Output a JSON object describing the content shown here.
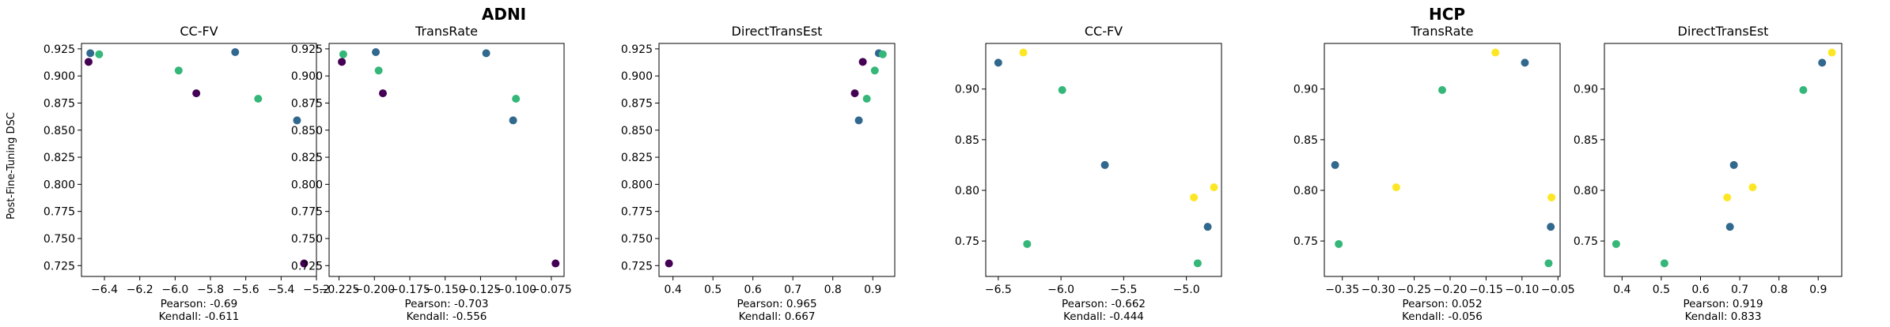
{
  "figure": {
    "groups": [
      {
        "title": "ADNI",
        "panels": [
          0,
          1,
          2
        ]
      },
      {
        "title": "HCP",
        "panels": [
          3,
          4,
          5
        ]
      }
    ],
    "ylabel": "Post-Fine-Tuning DSC"
  },
  "chart_data": [
    {
      "type": "scatter",
      "group": "ADNI",
      "title": "CC-FV",
      "xlim": [
        -6.53,
        -5.2
      ],
      "ylim": [
        0.715,
        0.93
      ],
      "xticks": [
        -6.4,
        -6.2,
        -6.0,
        -5.8,
        -5.6,
        -5.4,
        -5.2
      ],
      "xtick_labels": [
        "−6.4",
        "−6.2",
        "−6.0",
        "−5.8",
        "−5.6",
        "−5.4",
        "−5.2"
      ],
      "yticks": [
        0.725,
        0.75,
        0.775,
        0.8,
        0.825,
        0.85,
        0.875,
        0.9,
        0.925
      ],
      "ytick_labels": [
        "0.725",
        "0.750",
        "0.775",
        "0.800",
        "0.825",
        "0.850",
        "0.875",
        "0.900",
        "0.925"
      ],
      "points": [
        {
          "x": -6.48,
          "y": 0.921,
          "color": "#31688e"
        },
        {
          "x": -6.49,
          "y": 0.913,
          "color": "#440154"
        },
        {
          "x": -6.43,
          "y": 0.92,
          "color": "#35b779"
        },
        {
          "x": -5.98,
          "y": 0.905,
          "color": "#35b779"
        },
        {
          "x": -5.88,
          "y": 0.884,
          "color": "#440154"
        },
        {
          "x": -5.66,
          "y": 0.922,
          "color": "#31688e"
        },
        {
          "x": -5.53,
          "y": 0.879,
          "color": "#35b779"
        },
        {
          "x": -5.31,
          "y": 0.859,
          "color": "#31688e"
        },
        {
          "x": -5.27,
          "y": 0.727,
          "color": "#440154"
        }
      ],
      "stats": {
        "pearson": "Pearson: -0.69",
        "kendall": "Kendall: -0.611"
      }
    },
    {
      "type": "scatter",
      "group": "ADNI",
      "title": "TransRate",
      "xlim": [
        -0.232,
        -0.066
      ],
      "ylim": [
        0.715,
        0.93
      ],
      "xticks": [
        -0.225,
        -0.2,
        -0.175,
        -0.15,
        -0.125,
        -0.1,
        -0.075
      ],
      "xtick_labels": [
        "−0.225",
        "−0.200",
        "−0.175",
        "−0.150",
        "−0.125",
        "−0.100",
        "−0.075"
      ],
      "yticks": [
        0.725,
        0.75,
        0.775,
        0.8,
        0.825,
        0.85,
        0.875,
        0.9,
        0.925
      ],
      "ytick_labels": [
        "0.725",
        "0.750",
        "0.775",
        "0.800",
        "0.825",
        "0.850",
        "0.875",
        "0.900",
        "0.925"
      ],
      "points": [
        {
          "x": -0.222,
          "y": 0.92,
          "color": "#35b779"
        },
        {
          "x": -0.223,
          "y": 0.913,
          "color": "#440154"
        },
        {
          "x": -0.199,
          "y": 0.922,
          "color": "#31688e"
        },
        {
          "x": -0.197,
          "y": 0.905,
          "color": "#35b779"
        },
        {
          "x": -0.194,
          "y": 0.884,
          "color": "#440154"
        },
        {
          "x": -0.121,
          "y": 0.921,
          "color": "#31688e"
        },
        {
          "x": -0.1,
          "y": 0.879,
          "color": "#35b779"
        },
        {
          "x": -0.102,
          "y": 0.859,
          "color": "#31688e"
        },
        {
          "x": -0.072,
          "y": 0.727,
          "color": "#440154"
        }
      ],
      "stats": {
        "pearson": "Pearson: -0.703",
        "kendall": "Kendall: -0.556"
      }
    },
    {
      "type": "scatter",
      "group": "ADNI",
      "title": "DirectTransEst",
      "xlim": [
        0.365,
        0.955
      ],
      "ylim": [
        0.715,
        0.93
      ],
      "xticks": [
        0.4,
        0.5,
        0.6,
        0.7,
        0.8,
        0.9
      ],
      "xtick_labels": [
        "0.4",
        "0.5",
        "0.6",
        "0.7",
        "0.8",
        "0.9"
      ],
      "yticks": [
        0.725,
        0.75,
        0.775,
        0.8,
        0.825,
        0.85,
        0.875,
        0.9,
        0.925
      ],
      "ytick_labels": [
        "0.725",
        "0.750",
        "0.775",
        "0.800",
        "0.825",
        "0.850",
        "0.875",
        "0.900",
        "0.925"
      ],
      "points": [
        {
          "x": 0.39,
          "y": 0.727,
          "color": "#440154"
        },
        {
          "x": 0.855,
          "y": 0.884,
          "color": "#440154"
        },
        {
          "x": 0.865,
          "y": 0.859,
          "color": "#31688e"
        },
        {
          "x": 0.875,
          "y": 0.913,
          "color": "#440154"
        },
        {
          "x": 0.885,
          "y": 0.879,
          "color": "#35b779"
        },
        {
          "x": 0.905,
          "y": 0.905,
          "color": "#35b779"
        },
        {
          "x": 0.915,
          "y": 0.921,
          "color": "#31688e"
        },
        {
          "x": 0.925,
          "y": 0.92,
          "color": "#35b779"
        }
      ],
      "stats": {
        "pearson": "Pearson: 0.965",
        "kendall": "Kendall: 0.667"
      }
    },
    {
      "type": "scatter",
      "group": "HCP",
      "title": "CC-FV",
      "xlim": [
        -6.6,
        -4.72
      ],
      "ylim": [
        0.715,
        0.945
      ],
      "xticks": [
        -6.5,
        -6.0,
        -5.5,
        -5.0
      ],
      "xtick_labels": [
        "−6.5",
        "−6.0",
        "−5.5",
        "−5.0"
      ],
      "yticks": [
        0.75,
        0.8,
        0.85,
        0.9
      ],
      "ytick_labels": [
        "0.75",
        "0.80",
        "0.85",
        "0.90"
      ],
      "points": [
        {
          "x": -6.5,
          "y": 0.926,
          "color": "#31688e"
        },
        {
          "x": -6.3,
          "y": 0.936,
          "color": "#fde725"
        },
        {
          "x": -6.27,
          "y": 0.747,
          "color": "#35b779"
        },
        {
          "x": -5.99,
          "y": 0.899,
          "color": "#35b779"
        },
        {
          "x": -5.65,
          "y": 0.825,
          "color": "#31688e"
        },
        {
          "x": -4.94,
          "y": 0.793,
          "color": "#fde725"
        },
        {
          "x": -4.91,
          "y": 0.728,
          "color": "#35b779"
        },
        {
          "x": -4.83,
          "y": 0.764,
          "color": "#31688e"
        },
        {
          "x": -4.78,
          "y": 0.803,
          "color": "#fde725"
        }
      ],
      "stats": {
        "pearson": "Pearson: -0.662",
        "kendall": "Kendall: -0.444"
      }
    },
    {
      "type": "scatter",
      "group": "HCP",
      "title": "TransRate",
      "xlim": [
        -0.375,
        -0.047
      ],
      "ylim": [
        0.715,
        0.945
      ],
      "xticks": [
        -0.35,
        -0.3,
        -0.25,
        -0.2,
        -0.15,
        -0.1,
        -0.05
      ],
      "xtick_labels": [
        "−0.35",
        "−0.30",
        "−0.25",
        "−0.20",
        "−0.15",
        "−0.10",
        "−0.05"
      ],
      "yticks": [
        0.75,
        0.8,
        0.85,
        0.9
      ],
      "ytick_labels": [
        "0.75",
        "0.80",
        "0.85",
        "0.90"
      ],
      "points": [
        {
          "x": -0.36,
          "y": 0.825,
          "color": "#31688e"
        },
        {
          "x": -0.355,
          "y": 0.747,
          "color": "#35b779"
        },
        {
          "x": -0.275,
          "y": 0.803,
          "color": "#fde725"
        },
        {
          "x": -0.211,
          "y": 0.899,
          "color": "#35b779"
        },
        {
          "x": -0.137,
          "y": 0.936,
          "color": "#fde725"
        },
        {
          "x": -0.096,
          "y": 0.926,
          "color": "#31688e"
        },
        {
          "x": -0.059,
          "y": 0.793,
          "color": "#fde725"
        },
        {
          "x": -0.06,
          "y": 0.764,
          "color": "#31688e"
        },
        {
          "x": -0.063,
          "y": 0.728,
          "color": "#35b779"
        }
      ],
      "stats": {
        "pearson": "Pearson: 0.052",
        "kendall": "Kendall: -0.056"
      }
    },
    {
      "type": "scatter",
      "group": "HCP",
      "title": "DirectTransEst",
      "xlim": [
        0.355,
        0.96
      ],
      "ylim": [
        0.715,
        0.945
      ],
      "xticks": [
        0.4,
        0.5,
        0.6,
        0.7,
        0.8,
        0.9
      ],
      "xtick_labels": [
        "0.4",
        "0.5",
        "0.6",
        "0.7",
        "0.8",
        "0.9"
      ],
      "yticks": [
        0.75,
        0.8,
        0.85,
        0.9
      ],
      "ytick_labels": [
        "0.75",
        "0.80",
        "0.85",
        "0.90"
      ],
      "points": [
        {
          "x": 0.385,
          "y": 0.747,
          "color": "#35b779"
        },
        {
          "x": 0.508,
          "y": 0.728,
          "color": "#35b779"
        },
        {
          "x": 0.668,
          "y": 0.793,
          "color": "#fde725"
        },
        {
          "x": 0.675,
          "y": 0.764,
          "color": "#31688e"
        },
        {
          "x": 0.685,
          "y": 0.825,
          "color": "#31688e"
        },
        {
          "x": 0.733,
          "y": 0.803,
          "color": "#fde725"
        },
        {
          "x": 0.862,
          "y": 0.899,
          "color": "#35b779"
        },
        {
          "x": 0.91,
          "y": 0.926,
          "color": "#31688e"
        },
        {
          "x": 0.935,
          "y": 0.936,
          "color": "#fde725"
        }
      ],
      "stats": {
        "pearson": "Pearson: 0.919",
        "kendall": "Kendall: 0.833"
      }
    }
  ]
}
